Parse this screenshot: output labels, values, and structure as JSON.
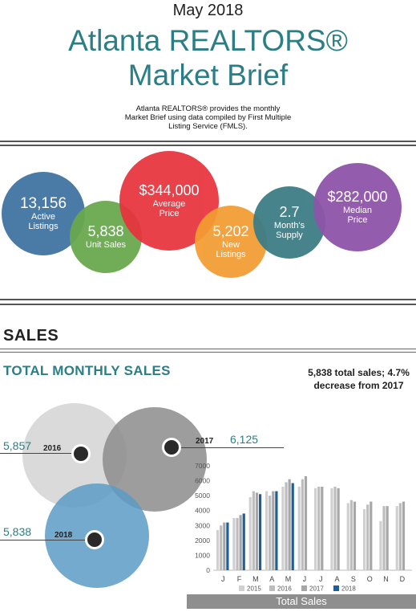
{
  "header": {
    "date": "May 2018",
    "title_line1": "Atlanta REALTORS®",
    "title_line2": "Market Brief",
    "intro_line1": "Atlanta REALTORS® provides the monthly",
    "intro_line2": "Market Brief using data compiled by First Multiple",
    "intro_line3": "Listing Service (FMLS)."
  },
  "stats": {
    "active_listings": {
      "value": "13,156",
      "label1": "Active",
      "label2": "Listings",
      "color": "#4a7ba7"
    },
    "unit_sales": {
      "value": "5,838",
      "label": "Unit Sales",
      "color": "#6aa84f"
    },
    "average_price": {
      "value": "$344,000",
      "label1": "Average",
      "label2": "Price",
      "color": "#e8333d"
    },
    "new_listings": {
      "value": "5,202",
      "label1": "New",
      "label2": "Listings",
      "color": "#f39c32"
    },
    "months_supply": {
      "value": "2.7",
      "label1": "Month's",
      "label2": "Supply",
      "color": "#3d7d85"
    },
    "median_price": {
      "value": "$282,000",
      "label1": "Median",
      "label2": "Price",
      "color": "#8e54a8"
    }
  },
  "sales": {
    "section_title": "SALES",
    "subtitle": "TOTAL MONTHLY SALES",
    "note_line1": "5,838 total sales; 4.7%",
    "note_line2": "decrease from 2017",
    "venn": [
      {
        "year": "2016",
        "value": "5,857"
      },
      {
        "year": "2017",
        "value": "6,125"
      },
      {
        "year": "2018",
        "value": "5,838"
      }
    ],
    "chart_banner": "Total Sales"
  },
  "colors": {
    "teal": "#2b7e86",
    "y2015": "#d0d0d0",
    "y2016": "#bdbdbd",
    "y2017": "#a7a7a7",
    "y2018": "#1f5f95"
  },
  "chart_data": {
    "type": "bar",
    "title": "Total Sales",
    "categories": [
      "J",
      "F",
      "M",
      "A",
      "M",
      "J",
      "J",
      "A",
      "S",
      "O",
      "N",
      "D"
    ],
    "ylim": [
      0,
      7000
    ],
    "yticks": [
      "0",
      "1000",
      "2000",
      "3000",
      "4000",
      "5000",
      "6000",
      "7000"
    ],
    "legend": [
      "2015",
      "2016",
      "2017",
      "2018"
    ],
    "series": [
      {
        "name": "2015",
        "values": [
          2700,
          3500,
          4900,
          5300,
          5600,
          5600,
          5500,
          5500,
          4500,
          4100,
          3300,
          4300
        ]
      },
      {
        "name": "2016",
        "values": [
          3000,
          3500,
          5300,
          5000,
          5900,
          6100,
          5600,
          5600,
          4700,
          4400,
          4300,
          4500
        ]
      },
      {
        "name": "2017",
        "values": [
          3200,
          3700,
          5200,
          5300,
          6100,
          6300,
          5600,
          5500,
          4600,
          4600,
          4300,
          4600
        ]
      },
      {
        "name": "2018",
        "values": [
          3200,
          3800,
          5100,
          5300,
          5838,
          null,
          null,
          null,
          null,
          null,
          null,
          null
        ]
      }
    ],
    "grid": false,
    "legend_position": "bottom"
  }
}
